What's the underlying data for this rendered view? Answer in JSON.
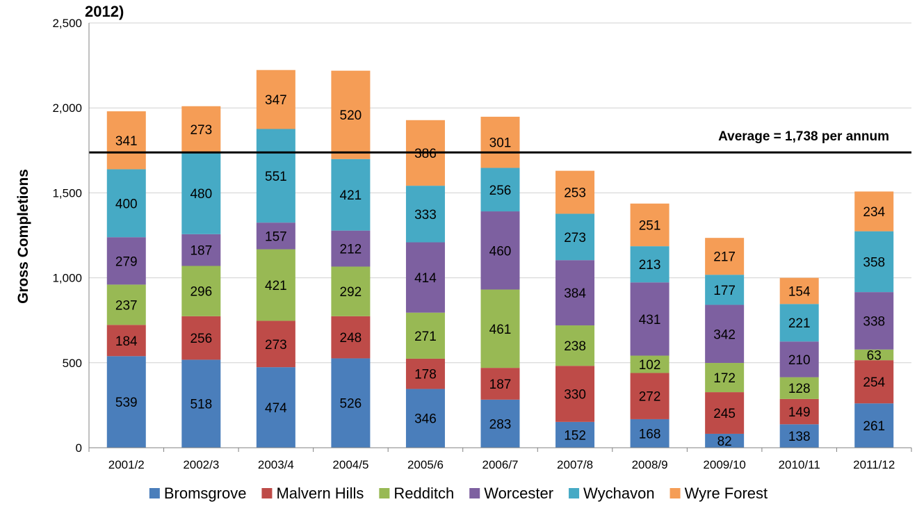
{
  "chart_data": {
    "type": "bar",
    "stacked": true,
    "title": "2012)",
    "ylabel": "Gross Completions",
    "xlabel": "",
    "ylim": [
      0,
      2500
    ],
    "yticks": [
      0,
      500,
      1000,
      1500,
      2000,
      2500
    ],
    "ytick_labels": [
      "0",
      "500",
      "1,000",
      "1,500",
      "2,000",
      "2,500"
    ],
    "grid": true,
    "legend_position": "bottom",
    "categories": [
      "2001/2",
      "2002/3",
      "2003/4",
      "2004/5",
      "2005/6",
      "2006/7",
      "2007/8",
      "2008/9",
      "2009/10",
      "2010/11",
      "2011/12"
    ],
    "series": [
      {
        "name": "Bromsgrove",
        "color": "#4a7ebb",
        "values": [
          539,
          518,
          474,
          526,
          346,
          283,
          152,
          168,
          82,
          138,
          261
        ]
      },
      {
        "name": "Malvern Hills",
        "color": "#be4b48",
        "values": [
          184,
          256,
          273,
          248,
          178,
          187,
          330,
          272,
          245,
          149,
          254
        ]
      },
      {
        "name": "Redditch",
        "color": "#98b954",
        "values": [
          237,
          296,
          421,
          292,
          271,
          461,
          238,
          102,
          172,
          128,
          63
        ]
      },
      {
        "name": "Worcester",
        "color": "#7d60a0",
        "values": [
          279,
          187,
          157,
          212,
          414,
          460,
          384,
          431,
          342,
          210,
          338
        ]
      },
      {
        "name": "Wychavon",
        "color": "#46aac5",
        "values": [
          400,
          480,
          551,
          421,
          333,
          256,
          273,
          213,
          177,
          221,
          358
        ]
      },
      {
        "name": "Wyre Forest",
        "color": "#f59d56",
        "values": [
          341,
          273,
          347,
          520,
          386,
          301,
          253,
          251,
          217,
          154,
          234
        ]
      }
    ],
    "reference_line": {
      "value": 1738,
      "label": "Average = 1,738 per annum",
      "color": "#000000"
    }
  }
}
